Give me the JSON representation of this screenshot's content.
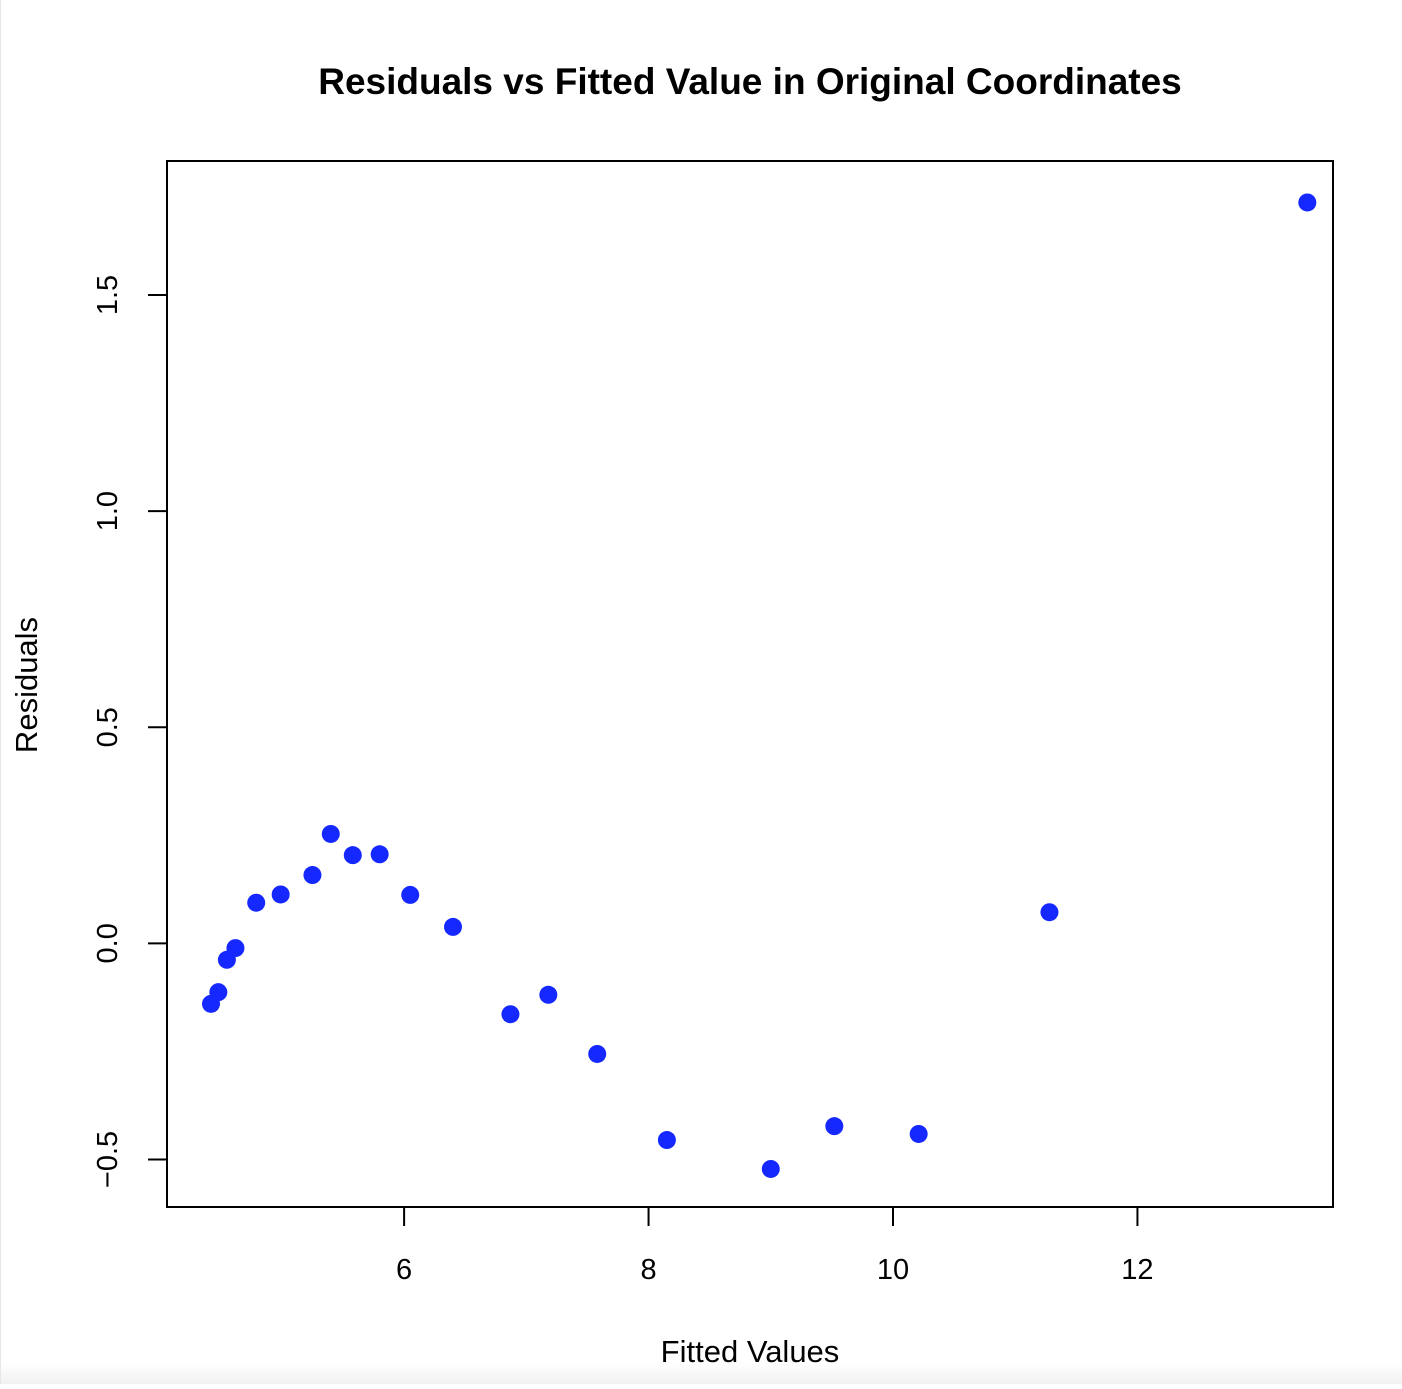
{
  "chart_data": {
    "type": "scatter",
    "title": "Residuals vs Fitted Value in Original Coordinates",
    "xlabel": "Fitted Values",
    "ylabel": "Residuals",
    "xlim": [
      4.06,
      13.6
    ],
    "ylim": [
      -0.61,
      1.81
    ],
    "xticks": [
      6,
      8,
      10,
      12
    ],
    "xtick_labels": [
      "6",
      "8",
      "10",
      "12"
    ],
    "yticks": [
      -0.5,
      0.0,
      0.5,
      1.0,
      1.5
    ],
    "ytick_labels": [
      "−0.5",
      "0.0",
      "0.5",
      "1.0",
      "1.5"
    ],
    "grid": false,
    "marker_color": "#1428ff",
    "points": [
      {
        "x": 4.42,
        "y": -0.14
      },
      {
        "x": 4.48,
        "y": -0.113
      },
      {
        "x": 4.55,
        "y": -0.038
      },
      {
        "x": 4.62,
        "y": -0.011
      },
      {
        "x": 4.79,
        "y": 0.094
      },
      {
        "x": 4.99,
        "y": 0.113
      },
      {
        "x": 5.25,
        "y": 0.158
      },
      {
        "x": 5.4,
        "y": 0.253
      },
      {
        "x": 5.58,
        "y": 0.204
      },
      {
        "x": 5.8,
        "y": 0.206
      },
      {
        "x": 6.05,
        "y": 0.112
      },
      {
        "x": 6.4,
        "y": 0.038
      },
      {
        "x": 6.87,
        "y": -0.164
      },
      {
        "x": 7.18,
        "y": -0.119
      },
      {
        "x": 7.58,
        "y": -0.256
      },
      {
        "x": 8.15,
        "y": -0.455
      },
      {
        "x": 9.0,
        "y": -0.522
      },
      {
        "x": 9.52,
        "y": -0.423
      },
      {
        "x": 10.21,
        "y": -0.441
      },
      {
        "x": 11.28,
        "y": 0.072
      },
      {
        "x": 13.39,
        "y": 1.714
      }
    ]
  }
}
